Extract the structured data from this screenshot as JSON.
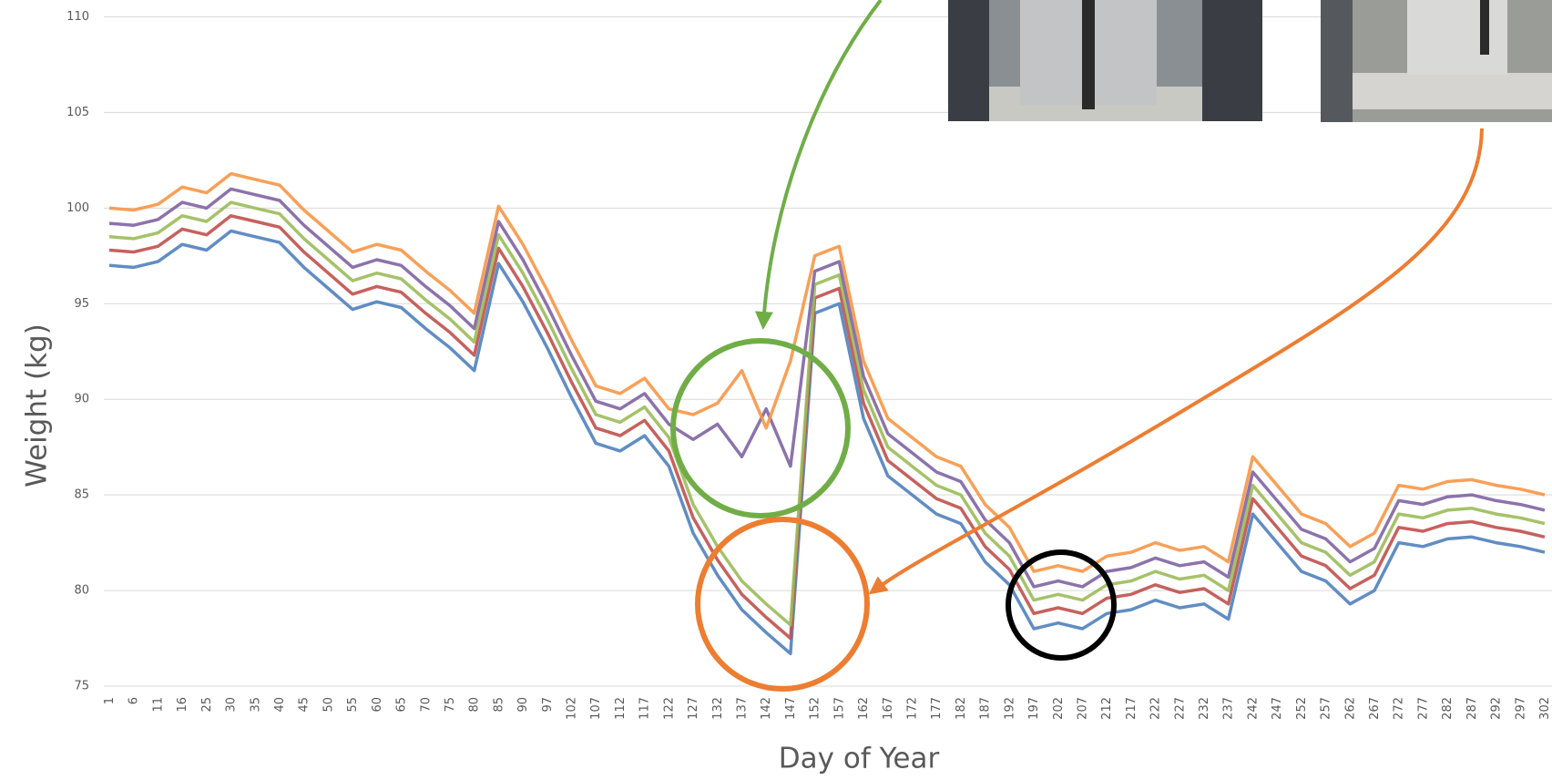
{
  "chart_data": {
    "type": "line",
    "x_label": "Day of Year",
    "y_label": "Weight (kg)",
    "categories": [
      "1",
      "6",
      "11",
      "16",
      "25",
      "30",
      "35",
      "40",
      "45",
      "50",
      "55",
      "60",
      "65",
      "70",
      "75",
      "80",
      "85",
      "90",
      "97",
      "102",
      "107",
      "112",
      "117",
      "122",
      "127",
      "132",
      "137",
      "142",
      "147",
      "152",
      "157",
      "162",
      "167",
      "172",
      "177",
      "182",
      "187",
      "192",
      "197",
      "202",
      "207",
      "212",
      "217",
      "222",
      "227",
      "232",
      "237",
      "242",
      "247",
      "252",
      "257",
      "262",
      "267",
      "272",
      "277",
      "282",
      "287",
      "292",
      "297",
      "302"
    ],
    "series": [
      {
        "color": "#4f81bd",
        "values": [
          97.0,
          96.9,
          97.2,
          98.1,
          97.8,
          98.8,
          98.5,
          98.2,
          96.9,
          95.8,
          94.7,
          95.1,
          94.8,
          93.7,
          92.7,
          91.5,
          97.1,
          95.1,
          92.7,
          90.1,
          87.7,
          87.3,
          88.1,
          86.5,
          83.0,
          80.8,
          79.0,
          77.8,
          76.7,
          94.5,
          95.0,
          89.0,
          86.0,
          85.0,
          84.0,
          83.5,
          81.5,
          80.3,
          78.0,
          78.3,
          78.0,
          78.8,
          79.0,
          79.5,
          79.1,
          79.3,
          78.5,
          84.0,
          82.5,
          81.0,
          80.5,
          79.3,
          80.0,
          82.5,
          82.3,
          82.7,
          82.8,
          82.5,
          82.3,
          82.0
        ]
      },
      {
        "color": "#c0504d",
        "values": [
          97.8,
          97.7,
          98.0,
          98.9,
          98.6,
          99.6,
          99.3,
          99.0,
          97.7,
          96.6,
          95.5,
          95.9,
          95.6,
          94.5,
          93.5,
          92.3,
          97.9,
          95.9,
          93.5,
          90.9,
          88.5,
          88.1,
          88.9,
          87.3,
          83.8,
          81.6,
          79.8,
          78.6,
          77.5,
          95.3,
          95.8,
          89.8,
          86.8,
          85.8,
          84.8,
          84.3,
          82.3,
          81.1,
          78.8,
          79.1,
          78.8,
          79.6,
          79.8,
          80.3,
          79.9,
          80.1,
          79.3,
          84.8,
          83.3,
          81.8,
          81.3,
          80.1,
          80.8,
          83.3,
          83.1,
          83.5,
          83.6,
          83.3,
          83.1,
          82.8
        ]
      },
      {
        "color": "#9bbb59",
        "values": [
          98.5,
          98.4,
          98.7,
          99.6,
          99.3,
          100.3,
          100.0,
          99.7,
          98.4,
          97.3,
          96.2,
          96.6,
          96.3,
          95.2,
          94.2,
          93.0,
          98.6,
          96.6,
          94.2,
          91.6,
          89.2,
          88.8,
          89.6,
          88.0,
          84.5,
          82.3,
          80.5,
          79.3,
          78.2,
          96.0,
          96.5,
          90.5,
          87.5,
          86.5,
          85.5,
          85.0,
          83.0,
          81.8,
          79.5,
          79.8,
          79.5,
          80.3,
          80.5,
          81.0,
          80.6,
          80.8,
          80.0,
          85.5,
          84.0,
          82.5,
          82.0,
          80.8,
          81.5,
          84.0,
          83.8,
          84.2,
          84.3,
          84.0,
          83.8,
          83.5
        ]
      },
      {
        "color": "#8064a2",
        "values": [
          99.2,
          99.1,
          99.4,
          100.3,
          100.0,
          101.0,
          100.7,
          100.4,
          99.1,
          98.0,
          96.9,
          97.3,
          97.0,
          95.9,
          94.9,
          93.7,
          99.3,
          97.3,
          94.9,
          92.3,
          89.9,
          89.5,
          90.3,
          88.7,
          87.9,
          88.7,
          87.0,
          89.5,
          86.5,
          96.7,
          97.2,
          91.2,
          88.2,
          87.2,
          86.2,
          85.7,
          83.7,
          82.5,
          80.2,
          80.5,
          80.2,
          81.0,
          81.2,
          81.7,
          81.3,
          81.5,
          80.7,
          86.2,
          84.7,
          83.2,
          82.7,
          81.5,
          82.2,
          84.7,
          84.5,
          84.9,
          85.0,
          84.7,
          84.5,
          84.2
        ]
      },
      {
        "color": "#f79646",
        "values": [
          100.0,
          99.9,
          100.2,
          101.1,
          100.8,
          101.8,
          101.5,
          101.2,
          99.9,
          98.8,
          97.7,
          98.1,
          97.8,
          96.7,
          95.7,
          94.5,
          100.1,
          98.1,
          95.7,
          93.1,
          90.7,
          90.3,
          91.1,
          89.5,
          89.2,
          89.8,
          91.5,
          88.5,
          92.0,
          97.5,
          98.0,
          92.0,
          89.0,
          88.0,
          87.0,
          86.5,
          84.5,
          83.3,
          81.0,
          81.3,
          81.0,
          81.8,
          82.0,
          82.5,
          82.1,
          82.3,
          81.5,
          87.0,
          85.5,
          84.0,
          83.5,
          82.3,
          83.0,
          85.5,
          85.3,
          85.7,
          85.8,
          85.5,
          85.3,
          85.0
        ]
      }
    ],
    "ylim": [
      75,
      110
    ],
    "yticks": [
      75,
      80,
      85,
      90,
      95,
      100,
      105,
      110
    ],
    "grid": true
  }
}
